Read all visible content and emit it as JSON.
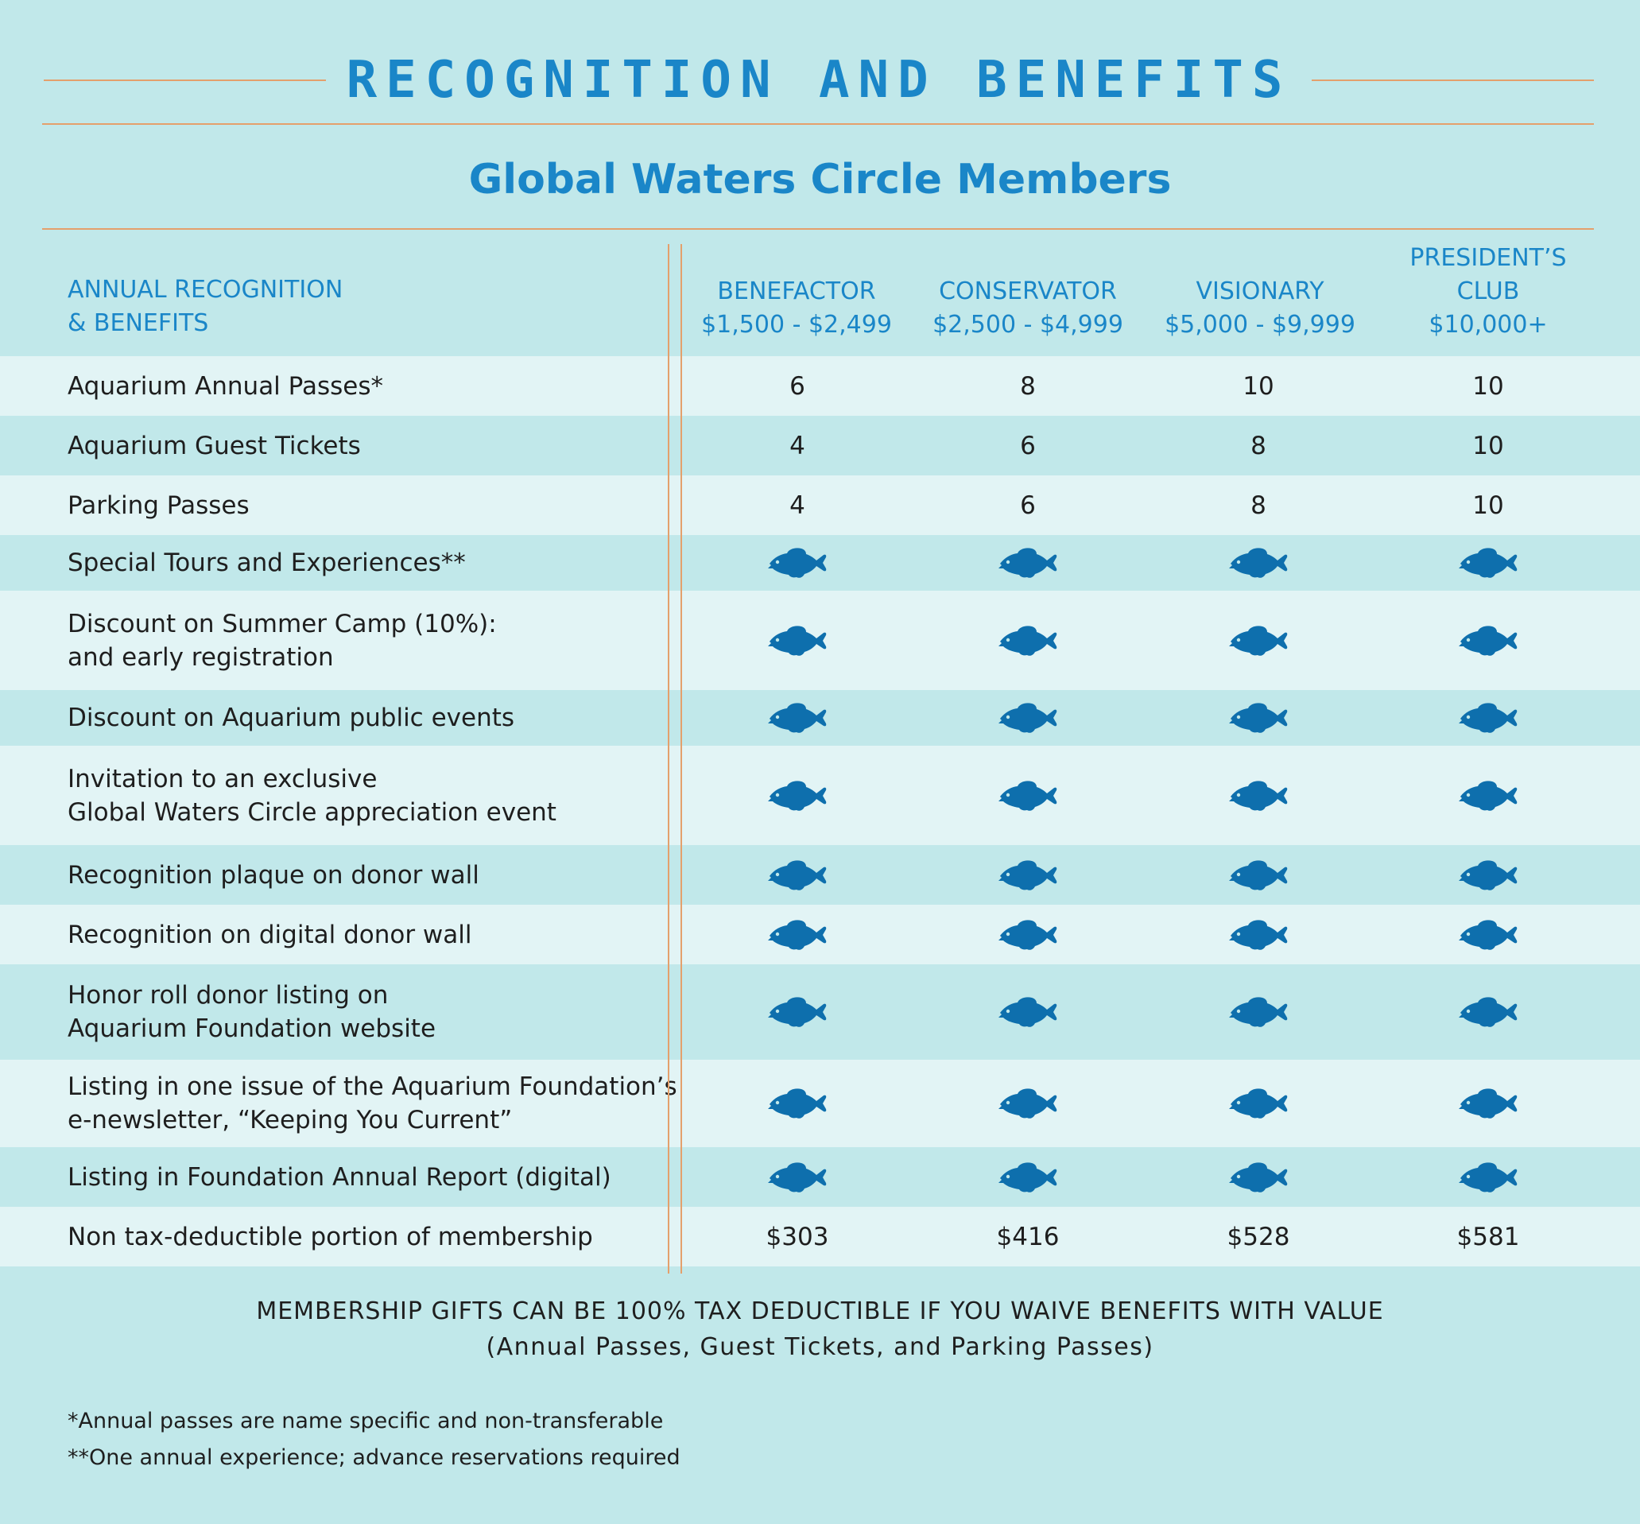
{
  "title": "RECOGNITION AND BENEFITS",
  "subtitle": "Global Waters Circle Members",
  "header": {
    "label_line1": "ANNUAL RECOGNITION",
    "label_line2": "& BENEFITS",
    "columns": [
      {
        "name": "BENEFACTOR",
        "range": "$1,500 - $2,499"
      },
      {
        "name": "CONSERVATOR",
        "range": "$2,500 - $4,999"
      },
      {
        "name": "VISIONARY",
        "range": "$5,000 - $9,999"
      },
      {
        "name_line1": "PRESIDENT’S",
        "name_line2": "CLUB",
        "range": "$10,000+"
      }
    ]
  },
  "rows": [
    {
      "label": "Aquarium Annual Passes*",
      "values": [
        "6",
        "8",
        "10",
        "10"
      ]
    },
    {
      "label": "Aquarium Guest Tickets",
      "values": [
        "4",
        "6",
        "8",
        "10"
      ]
    },
    {
      "label": "Parking Passes",
      "values": [
        "4",
        "6",
        "8",
        "10"
      ]
    },
    {
      "label": "Special Tours and Experiences**",
      "values": [
        "fish-icon",
        "fish-icon",
        "fish-icon",
        "fish-icon"
      ]
    },
    {
      "label_line1": "Discount on Summer Camp (10%):",
      "label_line2": "and early registration",
      "values": [
        "fish-icon",
        "fish-icon",
        "fish-icon",
        "fish-icon"
      ]
    },
    {
      "label": "Discount on Aquarium public events",
      "values": [
        "fish-icon",
        "fish-icon",
        "fish-icon",
        "fish-icon"
      ]
    },
    {
      "label_line1": "Invitation to an exclusive",
      "label_line2": "Global Waters Circle appreciation event",
      "values": [
        "fish-icon",
        "fish-icon",
        "fish-icon",
        "fish-icon"
      ]
    },
    {
      "label": "Recognition plaque on donor wall",
      "values": [
        "fish-icon",
        "fish-icon",
        "fish-icon",
        "fish-icon"
      ]
    },
    {
      "label": "Recognition on digital donor wall",
      "values": [
        "fish-icon",
        "fish-icon",
        "fish-icon",
        "fish-icon"
      ]
    },
    {
      "label_line1": "Honor roll donor listing on",
      "label_line2": "Aquarium Foundation website",
      "values": [
        "fish-icon",
        "fish-icon",
        "fish-icon",
        "fish-icon"
      ]
    },
    {
      "label_line1": "Listing in one issue of the Aquarium Foundation’s",
      "label_line2": "e-newsletter,  “Keeping You Current”",
      "values": [
        "fish-icon",
        "fish-icon",
        "fish-icon",
        "fish-icon"
      ]
    },
    {
      "label": "Listing in Foundation Annual Report (digital)",
      "values": [
        "fish-icon",
        "fish-icon",
        "fish-icon",
        "fish-icon"
      ]
    },
    {
      "label": "Non tax-deductible portion of membership",
      "values": [
        "$303",
        "$416",
        "$528",
        "$581"
      ]
    }
  ],
  "note": {
    "line1": "MEMBERSHIP GIFTS CAN BE 100% TAX DEDUCTIBLE IF YOU WAIVE BENEFITS WITH VALUE",
    "line2": "(Annual Passes, Guest Tickets, and Parking Passes)"
  },
  "footnotes": {
    "f1": "*Annual passes are name specific and non-transferable",
    "f2": "**One annual experience;  advance reservations required"
  },
  "colors": {
    "background": "#c1e8ea",
    "row_light": "#e2f4f5",
    "accent_blue": "#1a86c8",
    "fish_blue": "#0e6fad",
    "rule_orange": "#e4a06c"
  }
}
